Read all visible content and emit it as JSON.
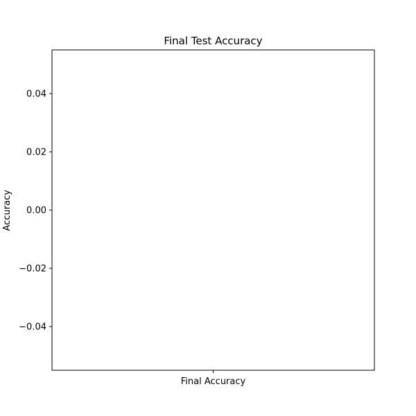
{
  "chart_data": {
    "type": "bar",
    "title": "Final Test Accuracy",
    "xlabel": "",
    "ylabel": "Accuracy",
    "categories": [
      "Final Accuracy"
    ],
    "values": [
      null
    ],
    "ylim": [
      -0.055,
      0.055
    ],
    "yticks": [
      -0.04,
      -0.02,
      0.0,
      0.02,
      0.04
    ],
    "ytick_labels": [
      "−0.04",
      "−0.02",
      "0.00",
      "0.02",
      "0.04"
    ],
    "grid": false,
    "legend": "none"
  }
}
